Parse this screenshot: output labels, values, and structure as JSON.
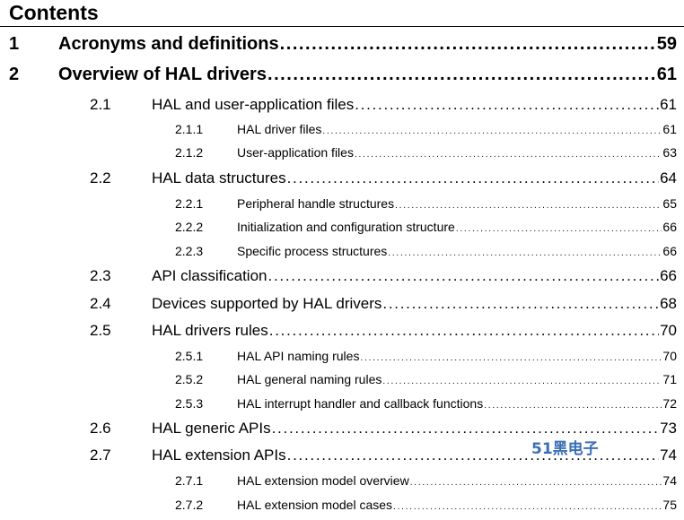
{
  "title": "Contents",
  "entries": [
    {
      "level": 1,
      "num": "1",
      "label": "Acronyms and definitions",
      "page": "59"
    },
    {
      "level": 1,
      "num": "2",
      "label": "Overview of HAL drivers",
      "page": "61"
    },
    {
      "level": 2,
      "num": "2.1",
      "label": "HAL and user-application files",
      "page": "61"
    },
    {
      "level": 3,
      "num": "2.1.1",
      "label": "HAL driver files",
      "page": "61"
    },
    {
      "level": 3,
      "num": "2.1.2",
      "label": "User-application files",
      "page": "63"
    },
    {
      "level": 2,
      "num": "2.2",
      "label": "HAL data structures",
      "page": "64"
    },
    {
      "level": 3,
      "num": "2.2.1",
      "label": "Peripheral handle structures",
      "page": "65"
    },
    {
      "level": 3,
      "num": "2.2.2",
      "label": "Initialization and configuration structure",
      "page": "66"
    },
    {
      "level": 3,
      "num": "2.2.3",
      "label": "Specific process structures",
      "page": "66"
    },
    {
      "level": 2,
      "num": "2.3",
      "label": "API classification",
      "page": "66"
    },
    {
      "level": 2,
      "num": "2.4",
      "label": "Devices supported by HAL drivers",
      "page": "68"
    },
    {
      "level": 2,
      "num": "2.5",
      "label": "HAL drivers rules",
      "page": "70"
    },
    {
      "level": 3,
      "num": "2.5.1",
      "label": "HAL API naming rules",
      "page": "70"
    },
    {
      "level": 3,
      "num": "2.5.2",
      "label": "HAL general naming rules",
      "page": "71"
    },
    {
      "level": 3,
      "num": "2.5.3",
      "label": "HAL interrupt handler and callback functions",
      "page": "72"
    },
    {
      "level": 2,
      "num": "2.6",
      "label": "HAL generic APIs",
      "page": "73"
    },
    {
      "level": 2,
      "num": "2.7",
      "label": "HAL extension APIs",
      "page": "74"
    },
    {
      "level": 3,
      "num": "2.7.1",
      "label": "HAL extension model overview",
      "page": "74"
    },
    {
      "level": 3,
      "num": "2.7.2",
      "label": "HAL extension model cases",
      "page": "75"
    }
  ],
  "watermark": "51黑电子"
}
